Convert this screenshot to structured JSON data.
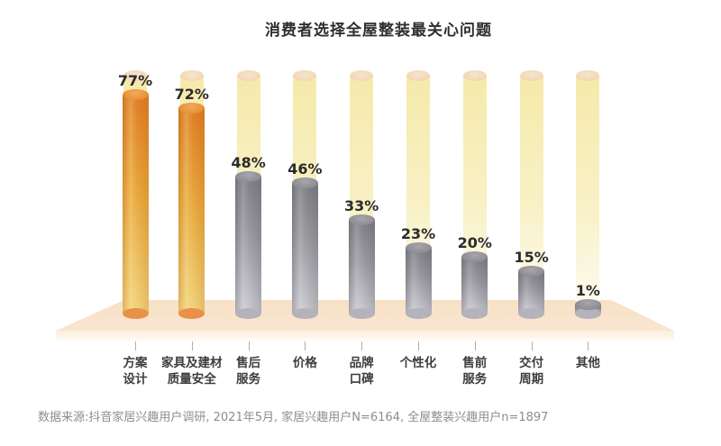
{
  "title": "消费者选择全屋整装最关心问题",
  "source_note": "数据来源:抖音家居兴趣用户调研, 2021年5月, 家居兴趣用户N=6164, 全屋整装兴趣用户n=1897",
  "colors": {
    "highlight_bar_top": "#df7e25",
    "highlight_bar_bottom": "#f1d47e",
    "highlight_base_ellipse": "#ea9149",
    "normal_bar_top": "#7f7e84",
    "normal_bar_bottom": "#cbcad1",
    "normal_base_ellipse": "#b4b3bb",
    "track_column": "#f8f1c6",
    "track_cap": "#f1d6b4",
    "platform": "#f9e2c8",
    "title_text": "#2e2e2e",
    "value_text": "#2b2b2b",
    "category_text": "#3d3d3d",
    "source_text": "#8d8d8d"
  },
  "chart_data": {
    "type": "bar",
    "title": "消费者选择全屋整装最关心问题",
    "unit": "%",
    "ylim": [
      0,
      100
    ],
    "grid": false,
    "legend": false,
    "xlabel": "",
    "ylabel": "",
    "categories": [
      "方案设计",
      "家具及建材质量安全",
      "售后服务",
      "价格",
      "品牌口碑",
      "个性化",
      "售前服务",
      "交付周期",
      "其他"
    ],
    "values": [
      77,
      72,
      48,
      46,
      33,
      23,
      20,
      15,
      1
    ],
    "bars": [
      {
        "label": "方案设计",
        "label_lines": [
          "方案",
          "设计"
        ],
        "value": 77,
        "display": "77%",
        "highlight": true
      },
      {
        "label": "家具及建材质量安全",
        "label_lines": [
          "家具及建材",
          "质量安全"
        ],
        "value": 72,
        "display": "72%",
        "highlight": true
      },
      {
        "label": "售后服务",
        "label_lines": [
          "售后",
          "服务"
        ],
        "value": 48,
        "display": "48%",
        "highlight": false
      },
      {
        "label": "价格",
        "label_lines": [
          "价格"
        ],
        "value": 46,
        "display": "46%",
        "highlight": false
      },
      {
        "label": "品牌口碑",
        "label_lines": [
          "品牌",
          "口碑"
        ],
        "value": 33,
        "display": "33%",
        "highlight": false
      },
      {
        "label": "个性化",
        "label_lines": [
          "个性化"
        ],
        "value": 23,
        "display": "23%",
        "highlight": false
      },
      {
        "label": "售前服务",
        "label_lines": [
          "售前",
          "服务"
        ],
        "value": 20,
        "display": "20%",
        "highlight": false
      },
      {
        "label": "交付周期",
        "label_lines": [
          "交付",
          "周期"
        ],
        "value": 15,
        "display": "15%",
        "highlight": false
      },
      {
        "label": "其他",
        "label_lines": [
          "其他"
        ],
        "value": 1,
        "display": "1%",
        "highlight": false
      }
    ],
    "source": "数据来源:抖音家居兴趣用户调研, 2021年5月, 家居兴趣用户N=6164, 全屋整装兴趣用户n=1897"
  }
}
